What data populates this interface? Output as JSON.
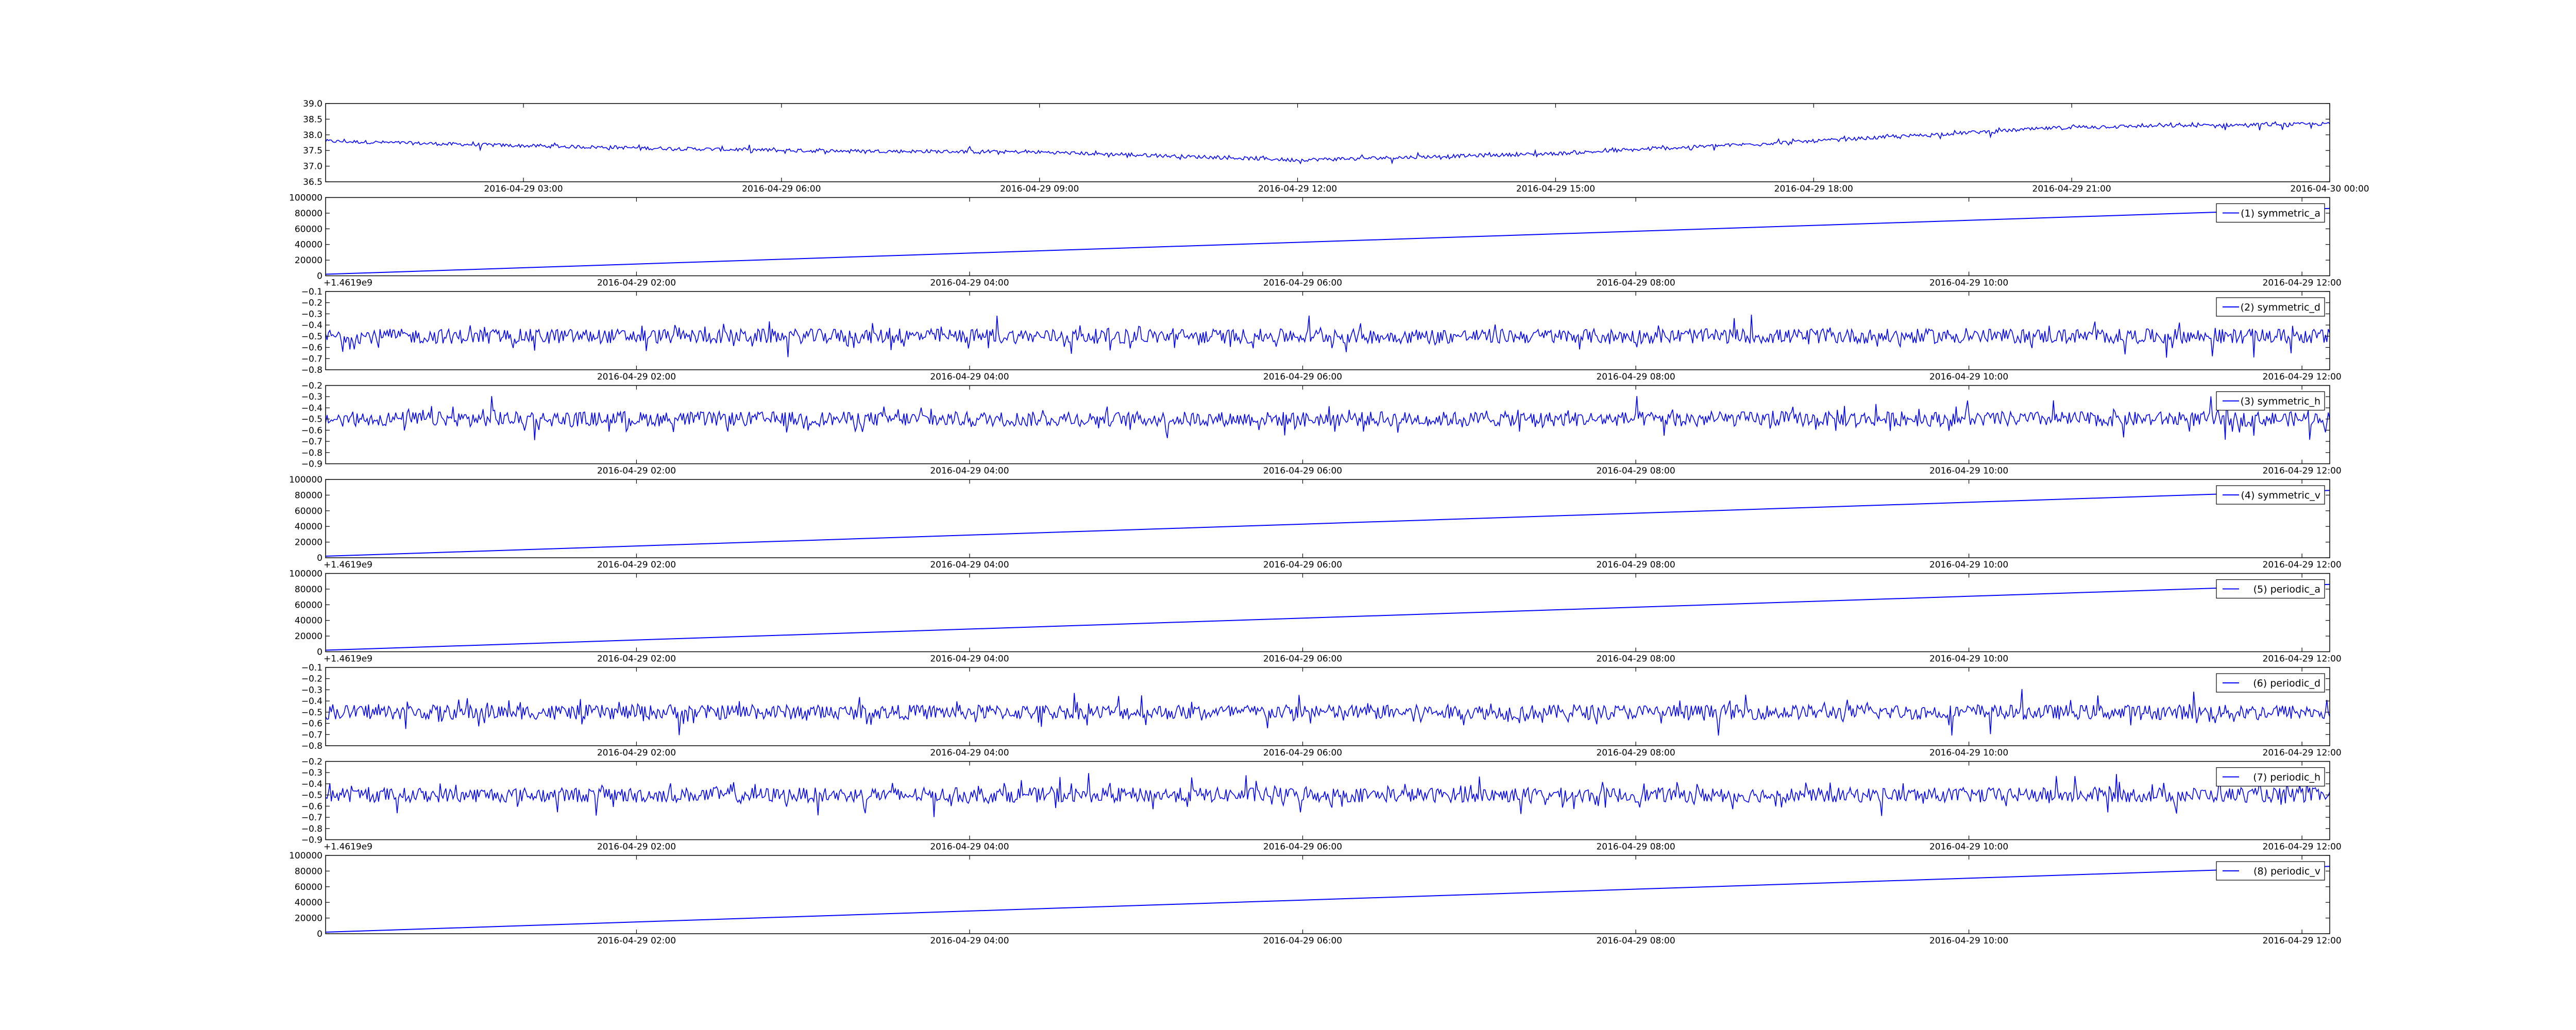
{
  "figure": {
    "line_color": "#0000ff",
    "axis_color": "#000000",
    "background": "#ffffff"
  },
  "chart_data": [
    {
      "type": "line",
      "title": "",
      "x_type": "datetime",
      "xlim": [
        "2016-04-29 00:42",
        "2016-04-30 00:00"
      ],
      "ylim": [
        36.5,
        39.0
      ],
      "y_ticks": [
        "36.5",
        "37.0",
        "37.5",
        "38.0",
        "38.5",
        "39.0"
      ],
      "x_ticks": [
        "2016-04-29 03:00",
        "2016-04-29 06:00",
        "2016-04-29 09:00",
        "2016-04-29 12:00",
        "2016-04-29 15:00",
        "2016-04-29 18:00",
        "2016-04-29 21:00",
        "2016-04-30 00:00"
      ],
      "offset_text": "",
      "legend": "",
      "series": [
        {
          "x": [
            "2016-04-29 00:42",
            "2016-04-29 03:00",
            "2016-04-29 06:00",
            "2016-04-29 09:00",
            "2016-04-29 12:00",
            "2016-04-29 15:00",
            "2016-04-29 18:00",
            "2016-04-29 21:00",
            "2016-04-30 00:00"
          ],
          "values": [
            37.8,
            37.65,
            37.5,
            37.45,
            37.2,
            37.4,
            37.8,
            38.25,
            38.35
          ],
          "noise": 0.1
        }
      ]
    },
    {
      "type": "line",
      "title": "",
      "x_type": "datetime",
      "xlim": [
        "2016-04-29 00:08",
        "2016-04-29 12:10"
      ],
      "ylim": [
        0,
        100000
      ],
      "y_ticks": [
        "0",
        "20000",
        "40000",
        "60000",
        "80000",
        "100000"
      ],
      "x_ticks": [
        "2016-04-29 02:00",
        "2016-04-29 04:00",
        "2016-04-29 06:00",
        "2016-04-29 08:00",
        "2016-04-29 10:00",
        "2016-04-29 12:00"
      ],
      "offset_text": "+1.4619e9",
      "legend": "(1) symmetric_a",
      "series": [
        {
          "x": [
            "2016-04-29 00:08",
            "2016-04-29 12:10"
          ],
          "values": [
            2000,
            86000
          ],
          "noise": 0
        }
      ]
    },
    {
      "type": "line",
      "title": "",
      "x_type": "datetime",
      "xlim": [
        "2016-04-29 00:08",
        "2016-04-29 12:10"
      ],
      "ylim": [
        -0.8,
        -0.1
      ],
      "y_ticks": [
        "−0.8",
        "−0.7",
        "−0.6",
        "−0.5",
        "−0.4",
        "−0.3",
        "−0.2",
        "−0.1"
      ],
      "x_ticks": [
        "2016-04-29 02:00",
        "2016-04-29 04:00",
        "2016-04-29 06:00",
        "2016-04-29 08:00",
        "2016-04-29 10:00",
        "2016-04-29 12:00"
      ],
      "offset_text": "",
      "legend": "(2) symmetric_d",
      "series": [
        {
          "x": [
            "2016-04-29 00:08",
            "2016-04-29 12:10"
          ],
          "values": [
            -0.5,
            -0.5
          ],
          "noise": 0.12
        }
      ]
    },
    {
      "type": "line",
      "title": "",
      "x_type": "datetime",
      "xlim": [
        "2016-04-29 00:08",
        "2016-04-29 12:10"
      ],
      "ylim": [
        -0.9,
        -0.2
      ],
      "y_ticks": [
        "−0.9",
        "−0.8",
        "−0.7",
        "−0.6",
        "−0.5",
        "−0.4",
        "−0.3",
        "−0.2"
      ],
      "x_ticks": [
        "2016-04-29 02:00",
        "2016-04-29 04:00",
        "2016-04-29 06:00",
        "2016-04-29 08:00",
        "2016-04-29 10:00",
        "2016-04-29 12:00"
      ],
      "offset_text": "",
      "legend": "(3) symmetric_h",
      "series": [
        {
          "x": [
            "2016-04-29 00:08",
            "2016-04-29 12:10"
          ],
          "values": [
            -0.5,
            -0.5
          ],
          "noise": 0.12
        }
      ]
    },
    {
      "type": "line",
      "title": "",
      "x_type": "datetime",
      "xlim": [
        "2016-04-29 00:08",
        "2016-04-29 12:10"
      ],
      "ylim": [
        0,
        100000
      ],
      "y_ticks": [
        "0",
        "20000",
        "40000",
        "60000",
        "80000",
        "100000"
      ],
      "x_ticks": [
        "2016-04-29 02:00",
        "2016-04-29 04:00",
        "2016-04-29 06:00",
        "2016-04-29 08:00",
        "2016-04-29 10:00",
        "2016-04-29 12:00"
      ],
      "offset_text": "+1.4619e9",
      "legend": "(4) symmetric_v",
      "series": [
        {
          "x": [
            "2016-04-29 00:08",
            "2016-04-29 12:10"
          ],
          "values": [
            2000,
            86000
          ],
          "noise": 0
        }
      ]
    },
    {
      "type": "line",
      "title": "",
      "x_type": "datetime",
      "xlim": [
        "2016-04-29 00:08",
        "2016-04-29 12:10"
      ],
      "ylim": [
        0,
        100000
      ],
      "y_ticks": [
        "0",
        "20000",
        "40000",
        "60000",
        "80000",
        "100000"
      ],
      "x_ticks": [
        "2016-04-29 02:00",
        "2016-04-29 04:00",
        "2016-04-29 06:00",
        "2016-04-29 08:00",
        "2016-04-29 10:00",
        "2016-04-29 12:00"
      ],
      "offset_text": "+1.4619e9",
      "legend": "(5) periodic_a",
      "series": [
        {
          "x": [
            "2016-04-29 00:08",
            "2016-04-29 12:10"
          ],
          "values": [
            2000,
            86000
          ],
          "noise": 0
        }
      ]
    },
    {
      "type": "line",
      "title": "",
      "x_type": "datetime",
      "xlim": [
        "2016-04-29 00:08",
        "2016-04-29 12:10"
      ],
      "ylim": [
        -0.8,
        -0.1
      ],
      "y_ticks": [
        "−0.8",
        "−0.7",
        "−0.6",
        "−0.5",
        "−0.4",
        "−0.3",
        "−0.2",
        "−0.1"
      ],
      "x_ticks": [
        "2016-04-29 02:00",
        "2016-04-29 04:00",
        "2016-04-29 06:00",
        "2016-04-29 08:00",
        "2016-04-29 10:00",
        "2016-04-29 12:00"
      ],
      "offset_text": "",
      "legend": "(6) periodic_d",
      "series": [
        {
          "x": [
            "2016-04-29 00:08",
            "2016-04-29 12:10"
          ],
          "values": [
            -0.5,
            -0.5
          ],
          "noise": 0.12
        }
      ]
    },
    {
      "type": "line",
      "title": "",
      "x_type": "datetime",
      "xlim": [
        "2016-04-29 00:08",
        "2016-04-29 12:10"
      ],
      "ylim": [
        -0.9,
        -0.2
      ],
      "y_ticks": [
        "−0.9",
        "−0.8",
        "−0.7",
        "−0.6",
        "−0.5",
        "−0.4",
        "−0.3",
        "−0.2"
      ],
      "x_ticks": [
        "2016-04-29 02:00",
        "2016-04-29 04:00",
        "2016-04-29 06:00",
        "2016-04-29 08:00",
        "2016-04-29 10:00",
        "2016-04-29 12:00"
      ],
      "offset_text": "+1.4619e9",
      "legend": "(7) periodic_h",
      "series": [
        {
          "x": [
            "2016-04-29 00:08",
            "2016-04-29 12:10"
          ],
          "values": [
            -0.5,
            -0.5
          ],
          "noise": 0.12
        }
      ]
    },
    {
      "type": "line",
      "title": "",
      "x_type": "datetime",
      "xlim": [
        "2016-04-29 00:08",
        "2016-04-29 12:10"
      ],
      "ylim": [
        0,
        100000
      ],
      "y_ticks": [
        "0",
        "20000",
        "40000",
        "60000",
        "80000",
        "100000"
      ],
      "x_ticks": [
        "2016-04-29 02:00",
        "2016-04-29 04:00",
        "2016-04-29 06:00",
        "2016-04-29 08:00",
        "2016-04-29 10:00",
        "2016-04-29 12:00"
      ],
      "offset_text": "",
      "legend": "(8) periodic_v",
      "series": [
        {
          "x": [
            "2016-04-29 00:08",
            "2016-04-29 12:10"
          ],
          "values": [
            2000,
            86000
          ],
          "noise": 0
        }
      ]
    }
  ]
}
